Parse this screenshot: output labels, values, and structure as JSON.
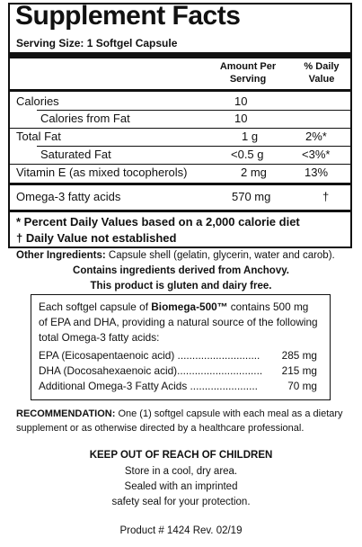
{
  "facts": {
    "title": "Supplement Facts",
    "serving_size": "Serving Size: 1 Softgel Capsule",
    "col_amount": "Amount Per\nServing",
    "col_amount_l1": "Amount Per",
    "col_amount_l2": "Serving",
    "col_dv_l1": "% Daily",
    "col_dv_l2": "Value",
    "rows": [
      {
        "label": "Calories",
        "amount": "10",
        "dv": ""
      },
      {
        "label": "Calories from Fat",
        "amount": "10",
        "dv": ""
      },
      {
        "label": "Total Fat",
        "amount": "1 g",
        "dv": "2%*"
      },
      {
        "label": "Saturated Fat",
        "amount": "<0.5 g",
        "dv": "<3%*"
      },
      {
        "label": "Vitamin E (as mixed tocopherols)",
        "amount": "2 mg",
        "dv": "13%"
      },
      {
        "label": "Omega-3 fatty acids",
        "amount": "570 mg",
        "dv": "†"
      }
    ],
    "footnote_1": "* Percent Daily Values based on a 2,000 calorie diet",
    "footnote_2": "† Daily Value not established"
  },
  "other": {
    "label": "Other Ingredients:",
    "text": " Capsule shell (gelatin, glycerin, water and carob).",
    "line2": "Contains ingredients derived from Anchovy.",
    "line3": "This product is gluten and dairy free."
  },
  "box": {
    "line1_pre": "Each softgel capsule of ",
    "line1_brand": "Biomega-500™",
    "line1_post": " contains 500 mg",
    "line2": "of EPA and DHA, providing a natural source of the following",
    "line3": "total Omega-3 fatty acids:",
    "items": [
      {
        "label": "EPA (Eicosapentaenoic acid) ............................",
        "value": "285 mg"
      },
      {
        "label": "DHA (Docosahexaenoic acid).............................",
        "value": "215 mg"
      },
      {
        "label": "Additional Omega-3 Fatty Acids .......................",
        "value": "70 mg"
      }
    ]
  },
  "recommendation": {
    "label": "RECOMMENDATION:",
    "text": " One (1) softgel capsule with each meal as a dietary",
    "line2": "supplement or as otherwise directed by a healthcare professional."
  },
  "warning": {
    "heading": "KEEP OUT OF REACH OF CHILDREN",
    "line1": "Store in a cool, dry area.",
    "line2": "Sealed with an imprinted",
    "line3": "safety seal for your protection."
  },
  "product": "Product # 1424  Rev. 02/19"
}
